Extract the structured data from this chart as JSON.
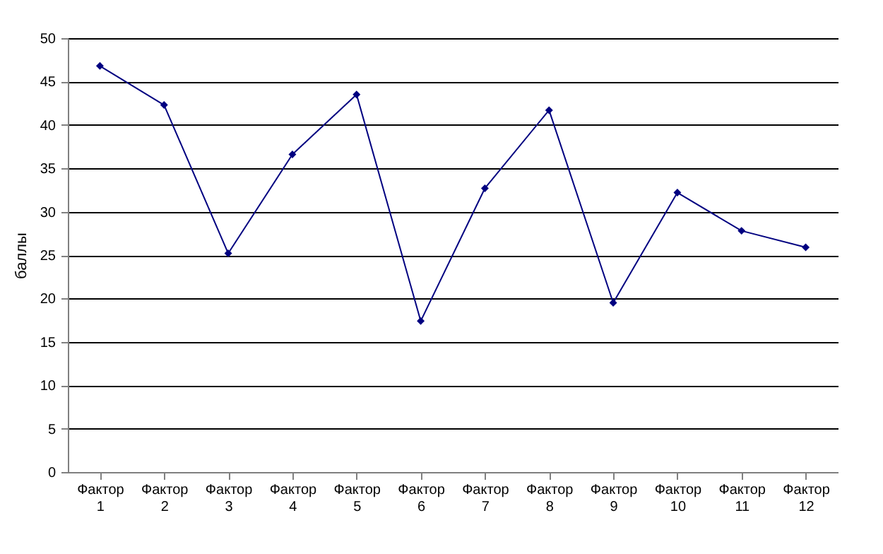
{
  "chart_data": {
    "type": "line",
    "ylabel": "баллы",
    "categories": [
      "Фактор 1",
      "Фактор 2",
      "Фактор 3",
      "Фактор 4",
      "Фактор 5",
      "Фактор 6",
      "Фактор 7",
      "Фактор 8",
      "Фактор 9",
      "Фактор 10",
      "Фактор 11",
      "Фактор 12"
    ],
    "series": [
      {
        "color": "#000080",
        "values": [
          46.8,
          42.3,
          25.2,
          36.6,
          43.5,
          17.4,
          32.7,
          41.7,
          19.5,
          32.2,
          27.8,
          25.9
        ]
      }
    ],
    "ylim": [
      0,
      50
    ],
    "yticks": [
      0,
      5,
      10,
      15,
      20,
      25,
      30,
      35,
      40,
      45,
      50
    ],
    "grid": "y",
    "marker": "diamond",
    "line_style": "solid"
  }
}
